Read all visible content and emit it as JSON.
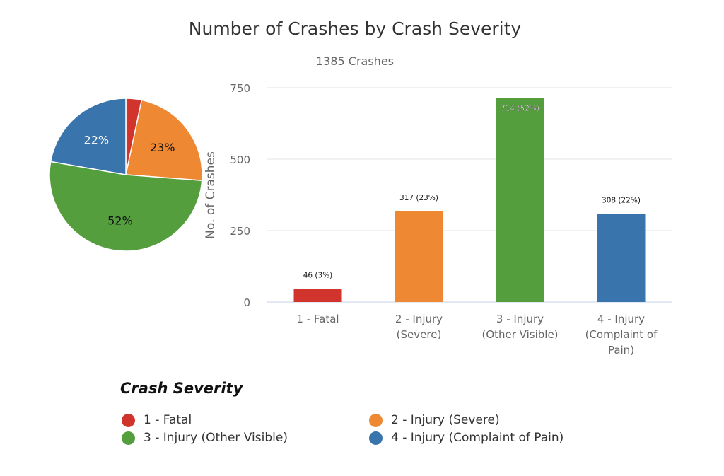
{
  "chart_data": [
    {
      "type": "pie",
      "title": "Number of Crashes by Crash Severity",
      "categories": [
        "1 - Fatal",
        "2 - Injury (Severe)",
        "3 - Injury (Other Visible)",
        "4 - Injury (Complaint of Pain)"
      ],
      "values": [
        46,
        317,
        714,
        308
      ],
      "data_labels": [
        "",
        "23%",
        "52%",
        "22%"
      ],
      "colors": [
        "#d0342c",
        "#ee8833",
        "#559e3e",
        "#3a74ad"
      ]
    },
    {
      "type": "bar",
      "subtitle": "1385 Crashes",
      "ylabel": "No. of Crashes",
      "xlabel": "",
      "ylim": [
        0,
        750
      ],
      "yticks": [
        "0",
        "250",
        "500",
        "750"
      ],
      "grid": true,
      "categories": [
        [
          "1 - Fatal"
        ],
        [
          "2 - Injury",
          "(Severe)"
        ],
        [
          "3 - Injury",
          "(Other Visible)"
        ],
        [
          "4 - Injury",
          "(Complaint of",
          "Pain)"
        ]
      ],
      "values": [
        46,
        317,
        714,
        308
      ],
      "data_labels": [
        "46 (3%)",
        "317 (23%)",
        "714 (52%)",
        "308 (22%)"
      ],
      "colors": [
        "#d0342c",
        "#ee8833",
        "#559e3e",
        "#3a74ad"
      ]
    }
  ],
  "legend": {
    "title": "Crash Severity",
    "placement": "bottom",
    "items": [
      {
        "label": "1 - Fatal",
        "color": "#d0342c"
      },
      {
        "label": "2 - Injury (Severe)",
        "color": "#ee8833"
      },
      {
        "label": "3 - Injury (Other Visible)",
        "color": "#559e3e"
      },
      {
        "label": "4 - Injury (Complaint of Pain)",
        "color": "#3a74ad"
      }
    ]
  }
}
